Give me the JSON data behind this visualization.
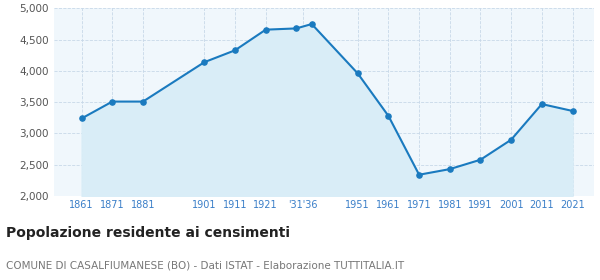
{
  "years": [
    1861,
    1871,
    1881,
    1901,
    1911,
    1921,
    1931,
    1936,
    1951,
    1961,
    1971,
    1981,
    1991,
    2001,
    2011,
    2021
  ],
  "population": [
    3240,
    3510,
    3510,
    4140,
    4330,
    4660,
    4680,
    4750,
    3960,
    3280,
    2340,
    2430,
    2580,
    2900,
    3470,
    3360
  ],
  "line_color": "#1a7abf",
  "fill_color": "#d9edf7",
  "marker_color": "#1a7abf",
  "background_color": "#ffffff",
  "plot_bg_color": "#f0f7fc",
  "grid_color": "#c8d8e8",
  "ylim": [
    2000,
    5000
  ],
  "yticks": [
    2000,
    2500,
    3000,
    3500,
    4000,
    4500,
    5000
  ],
  "title": "Popolazione residente ai censimenti",
  "subtitle": "COMUNE DI CASALFIUMANESE (BO) - Dati ISTAT - Elaborazione TUTTITALIA.IT",
  "title_fontsize": 10,
  "subtitle_fontsize": 7.5,
  "tick_label_color": "#3a7ec8",
  "ytick_label_color": "#555555",
  "x_tick_positions": [
    1861,
    1871,
    1881,
    1901,
    1911,
    1921,
    1933,
    1951,
    1961,
    1971,
    1981,
    1991,
    2001,
    2011,
    2021
  ],
  "x_tick_labels": [
    "1861",
    "1871",
    "1881",
    "1901",
    "1911",
    "1921",
    "'31'36",
    "1951",
    "1961",
    "1971",
    "1981",
    "1991",
    "2001",
    "2011",
    "2021"
  ]
}
